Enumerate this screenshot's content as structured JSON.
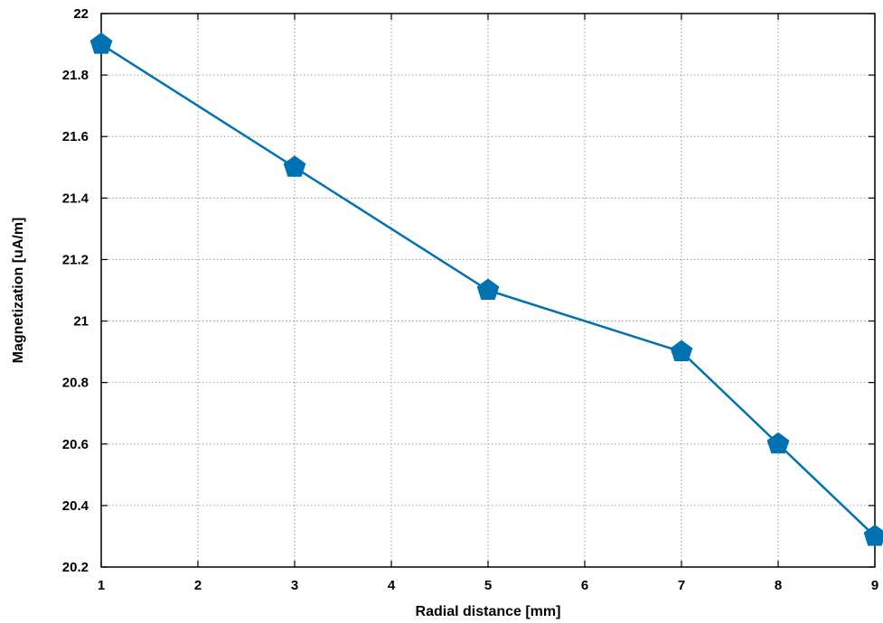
{
  "chart_data": {
    "type": "line",
    "title": "",
    "xlabel": "Radial distance [mm]",
    "ylabel": "Magnetization [uA/m]",
    "x_ticks": [
      "1",
      "2",
      "3",
      "4",
      "5",
      "6",
      "7",
      "8",
      "9"
    ],
    "y_ticks": [
      "20.2",
      "20.4",
      "20.6",
      "20.8",
      "21",
      "21.2",
      "21.4",
      "21.6",
      "21.8",
      "22"
    ],
    "xlim": [
      1,
      9
    ],
    "ylim": [
      20.2,
      22
    ],
    "grid": true,
    "series": [
      {
        "x": [
          1,
          3,
          5,
          7,
          8,
          9
        ],
        "y": [
          21.9,
          21.5,
          21.1,
          20.9,
          20.6,
          20.3
        ],
        "color": "#0072b2",
        "marker": "pentagon"
      }
    ]
  }
}
